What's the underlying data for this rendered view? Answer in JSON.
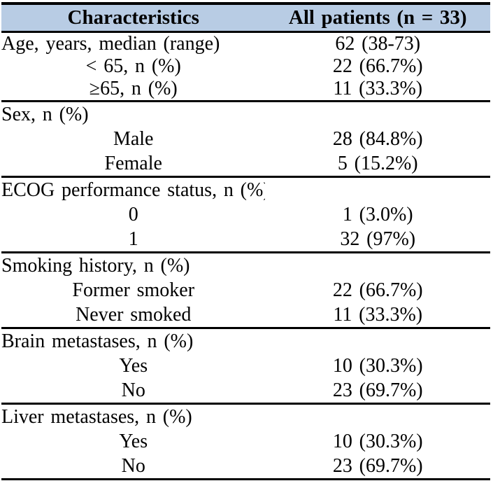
{
  "table": {
    "columns": [
      "Characteristics",
      "All patients (n = 33)"
    ],
    "sections": [
      {
        "rows": [
          {
            "label": "Age, years, median (range)",
            "value": "62 (38-73)",
            "indent": false
          },
          {
            "label": "< 65, n (%)",
            "value": "22 (66.7%)",
            "indent": true
          },
          {
            "label": "≥65, n (%)",
            "value": "11 (33.3%)",
            "indent": true
          }
        ]
      },
      {
        "rows": [
          {
            "label": "Sex, n (%)",
            "value": "",
            "indent": false
          },
          {
            "label": "Male",
            "value": "28 (84.8%)",
            "indent": true
          },
          {
            "label": "Female",
            "value": "5 (15.2%)",
            "indent": true
          }
        ]
      },
      {
        "rows": [
          {
            "label": "ECOG performance status, n (%)",
            "value": "",
            "indent": false
          },
          {
            "label": "0",
            "value": "1 (3.0%)",
            "indent": true
          },
          {
            "label": "1",
            "value": "32 (97%)",
            "indent": true
          }
        ]
      },
      {
        "rows": [
          {
            "label": "Smoking history, n (%)",
            "value": "",
            "indent": false
          },
          {
            "label": "Former smoker",
            "value": "22 (66.7%)",
            "indent": true
          },
          {
            "label": "Never smoked",
            "value": "11 (33.3%)",
            "indent": true
          }
        ]
      },
      {
        "rows": [
          {
            "label": "Brain metastases, n (%)",
            "value": "",
            "indent": false
          },
          {
            "label": "Yes",
            "value": "10 (30.3%)",
            "indent": true
          },
          {
            "label": "No",
            "value": "23 (69.7%)",
            "indent": true
          }
        ]
      },
      {
        "rows": [
          {
            "label": "Liver metastases, n (%)",
            "value": "",
            "indent": false
          },
          {
            "label": "Yes",
            "value": "10 (30.3%)",
            "indent": true
          },
          {
            "label": "No",
            "value": "23 (69.7%)",
            "indent": true
          }
        ]
      }
    ],
    "colors": {
      "header_bg": "#B8CCE4",
      "border": "#000000",
      "text": "#000000",
      "background": "#FFFFFF"
    }
  }
}
